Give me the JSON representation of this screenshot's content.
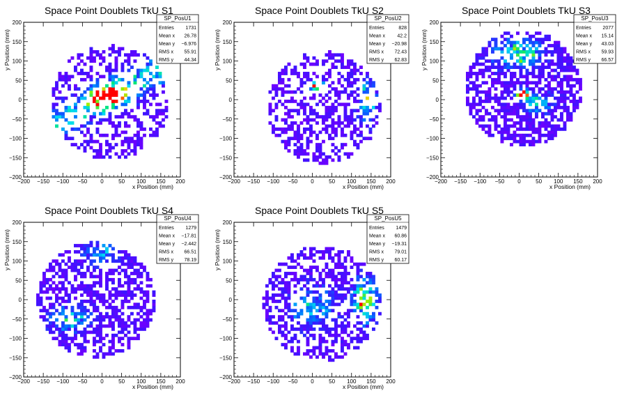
{
  "chart_data": [
    {
      "type": "heatmap",
      "title": "Space Point Doublets TkU S1",
      "xlabel": "x Position (mm)",
      "ylabel": "y Position (mm)",
      "xlim": [
        -200,
        200
      ],
      "ylim": [
        -200,
        200
      ],
      "xticks": [
        "−200",
        "−150",
        "−100",
        "−50",
        "0",
        "50",
        "100",
        "150",
        "200"
      ],
      "yticks": [
        "−200",
        "−150",
        "−100",
        "−50",
        "0",
        "50",
        "100",
        "150",
        "200"
      ],
      "stats": {
        "name": "SP_PosU1",
        "rows": [
          {
            "label": "Entries",
            "value": "1731"
          },
          {
            "label": "Mean x",
            "value": "26.78"
          },
          {
            "label": "Mean y",
            "value": "−6.976"
          },
          {
            "label": "RMS x",
            "value": "55.91"
          },
          {
            "label": "RMS y",
            "value": "44.34"
          }
        ]
      },
      "seed": 11,
      "disk": {
        "cx": 20,
        "cy": -5,
        "r": 150
      },
      "hotspots": [
        {
          "x": 0,
          "y": 0,
          "sx": 25,
          "sy": 18,
          "w": 10
        },
        {
          "x": 40,
          "y": 20,
          "sx": 30,
          "sy": 18,
          "w": 6
        }
      ],
      "band": {
        "slope": 0.55,
        "intercept": 0,
        "width": 25,
        "w": 5
      },
      "density": 0.42
    },
    {
      "type": "heatmap",
      "title": "Space Point Doublets TkU S2",
      "xlabel": "x Position (mm)",
      "ylabel": "y Position (mm)",
      "xlim": [
        -200,
        200
      ],
      "ylim": [
        -200,
        200
      ],
      "xticks": [
        "−200",
        "−150",
        "−100",
        "−50",
        "0",
        "50",
        "100",
        "150",
        "200"
      ],
      "yticks": [
        "−200",
        "−150",
        "−100",
        "−50",
        "0",
        "50",
        "100",
        "150",
        "200"
      ],
      "stats": {
        "name": "SP_PosU2",
        "rows": [
          {
            "label": "Entries",
            "value": "828"
          },
          {
            "label": "Mean x",
            "value": "42.2"
          },
          {
            "label": "Mean y",
            "value": "−20.98"
          },
          {
            "label": "RMS x",
            "value": "72.43"
          },
          {
            "label": "RMS y",
            "value": "62.83"
          }
        ]
      },
      "seed": 23,
      "disk": {
        "cx": 30,
        "cy": -20,
        "r": 145
      },
      "hotspots": [
        {
          "x": 10,
          "y": 35,
          "sx": 14,
          "sy": 8,
          "w": 12
        },
        {
          "x": 140,
          "y": 0,
          "sx": 15,
          "sy": 35,
          "w": 6
        }
      ],
      "band": null,
      "density": 0.45
    },
    {
      "type": "heatmap",
      "title": "Space Point Doublets TkU S3",
      "xlabel": "x Position (mm)",
      "ylabel": "y Position (mm)",
      "xlim": [
        -200,
        200
      ],
      "ylim": [
        -200,
        200
      ],
      "xticks": [
        "−200",
        "−150",
        "−100",
        "−50",
        "0",
        "50",
        "100",
        "150",
        "200"
      ],
      "yticks": [
        "−200",
        "−150",
        "−100",
        "−50",
        "0",
        "50",
        "100",
        "150",
        "200"
      ],
      "stats": {
        "name": "SP_PosU3",
        "rows": [
          {
            "label": "Entries",
            "value": "2077"
          },
          {
            "label": "Mean x",
            "value": "15.14"
          },
          {
            "label": "Mean y",
            "value": "43.03"
          },
          {
            "label": "RMS x",
            "value": "59.93"
          },
          {
            "label": "RMS y",
            "value": "66.57"
          }
        ]
      },
      "seed": 37,
      "disk": {
        "cx": 10,
        "cy": 30,
        "r": 150
      },
      "hotspots": [
        {
          "x": 0,
          "y": 120,
          "sx": 40,
          "sy": 25,
          "w": 7
        },
        {
          "x": 10,
          "y": 15,
          "sx": 12,
          "sy": 10,
          "w": 12
        },
        {
          "x": 50,
          "y": -10,
          "sx": 25,
          "sy": 18,
          "w": 5
        }
      ],
      "band": null,
      "density": 0.62
    },
    {
      "type": "heatmap",
      "title": "Space Point Doublets TkU S4",
      "xlabel": "x Position (mm)",
      "ylabel": "y Position (mm)",
      "xlim": [
        -200,
        200
      ],
      "ylim": [
        -200,
        200
      ],
      "xticks": [
        "−200",
        "−150",
        "−100",
        "−50",
        "0",
        "50",
        "100",
        "150",
        "200"
      ],
      "yticks": [
        "−200",
        "−150",
        "−100",
        "−50",
        "0",
        "50",
        "100",
        "150",
        "200"
      ],
      "stats": {
        "name": "SP_PosU4",
        "rows": [
          {
            "label": "Entries",
            "value": "1279"
          },
          {
            "label": "Mean x",
            "value": "−17.81"
          },
          {
            "label": "Mean y",
            "value": "−2.442"
          },
          {
            "label": "RMS x",
            "value": "66.51"
          },
          {
            "label": "RMS y",
            "value": "78.19"
          }
        ]
      },
      "seed": 51,
      "disk": {
        "cx": -15,
        "cy": 0,
        "r": 150
      },
      "hotspots": [
        {
          "x": -80,
          "y": -50,
          "sx": 35,
          "sy": 20,
          "w": 5
        },
        {
          "x": 0,
          "y": 120,
          "sx": 30,
          "sy": 20,
          "w": 4
        }
      ],
      "band": null,
      "density": 0.55
    },
    {
      "type": "heatmap",
      "title": "Space Point Doublets TkU S5",
      "xlabel": "x Position (mm)",
      "ylabel": "y Position (mm)",
      "xlim": [
        -200,
        200
      ],
      "ylim": [
        -200,
        200
      ],
      "xticks": [
        "−200",
        "−150",
        "−100",
        "−50",
        "0",
        "50",
        "100",
        "150",
        "200"
      ],
      "yticks": [
        "−200",
        "−150",
        "−100",
        "−50",
        "0",
        "50",
        "100",
        "150",
        "200"
      ],
      "stats": {
        "name": "SP_PosU5",
        "rows": [
          {
            "label": "Entries",
            "value": "1479"
          },
          {
            "label": "Mean x",
            "value": "60.86"
          },
          {
            "label": "Mean y",
            "value": "−19.31"
          },
          {
            "label": "RMS x",
            "value": "79.01"
          },
          {
            "label": "RMS y",
            "value": "60.17"
          }
        ]
      },
      "seed": 67,
      "disk": {
        "cx": 25,
        "cy": -10,
        "r": 150
      },
      "hotspots": [
        {
          "x": 135,
          "y": 0,
          "sx": 18,
          "sy": 35,
          "w": 10
        },
        {
          "x": 0,
          "y": -20,
          "sx": 40,
          "sy": 35,
          "w": 4
        }
      ],
      "band": null,
      "density": 0.5
    }
  ]
}
